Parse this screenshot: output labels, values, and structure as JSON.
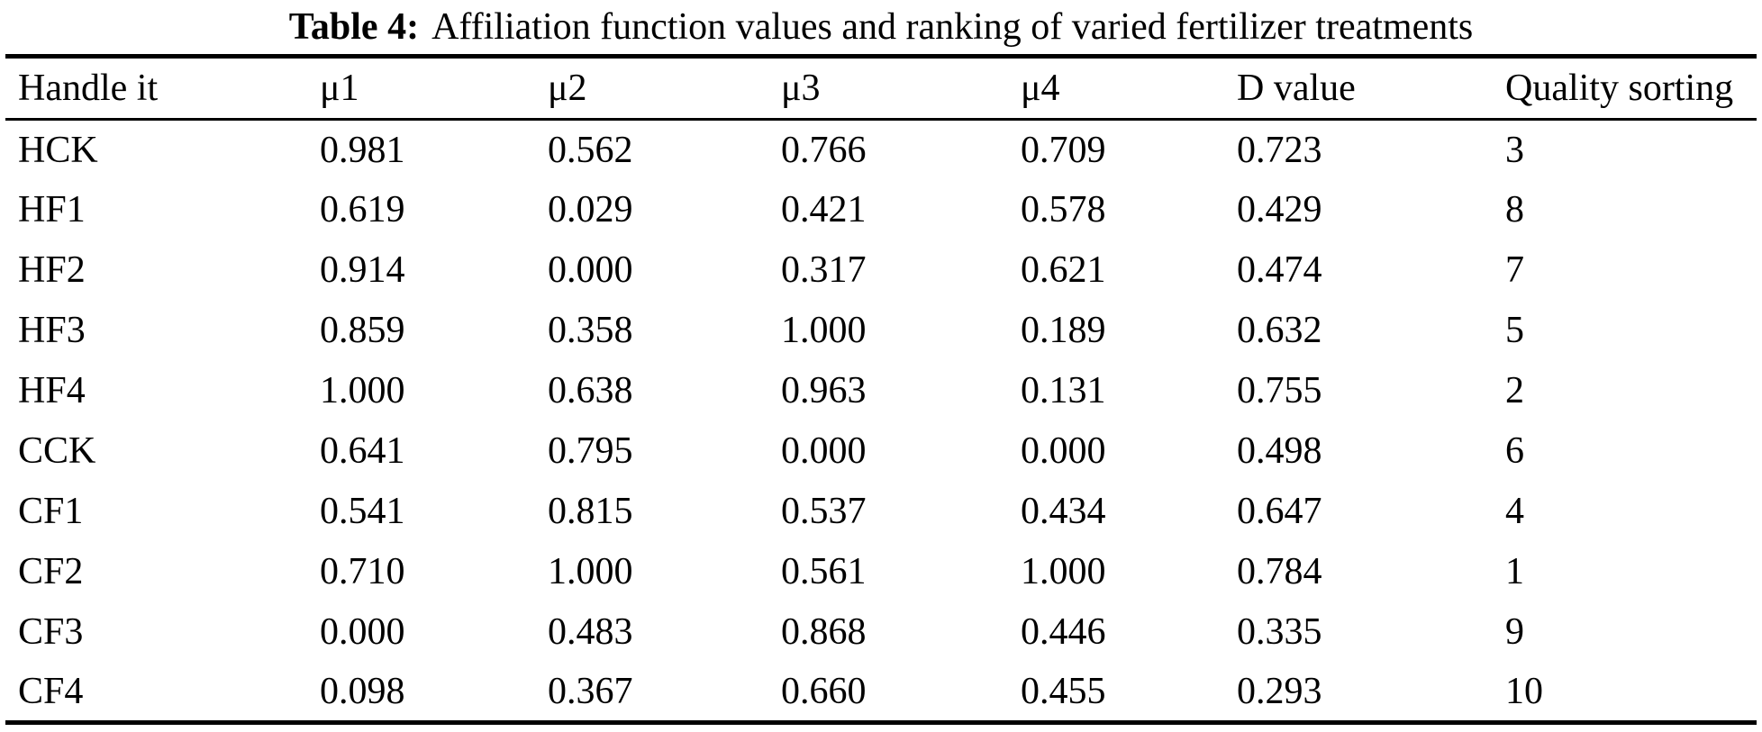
{
  "caption": {
    "label": "Table 4:",
    "text": "Affiliation function values and ranking of varied fertilizer treatments"
  },
  "table": {
    "columns": [
      "Handle it",
      "μ1",
      "μ2",
      "μ3",
      "μ4",
      "D value",
      "Quality sorting"
    ],
    "rows": [
      {
        "cells": [
          "HCK",
          "0.981",
          "0.562",
          "0.766",
          "0.709",
          "0.723",
          "3"
        ]
      },
      {
        "cells": [
          "HF1",
          "0.619",
          "0.029",
          "0.421",
          "0.578",
          "0.429",
          "8"
        ]
      },
      {
        "cells": [
          "HF2",
          "0.914",
          "0.000",
          "0.317",
          "0.621",
          "0.474",
          "7"
        ]
      },
      {
        "cells": [
          "HF3",
          "0.859",
          "0.358",
          "1.000",
          "0.189",
          "0.632",
          "5"
        ]
      },
      {
        "cells": [
          "HF4",
          "1.000",
          "0.638",
          "0.963",
          "0.131",
          "0.755",
          "2"
        ]
      },
      {
        "cells": [
          "CCK",
          "0.641",
          "0.795",
          "0.000",
          "0.000",
          "0.498",
          "6"
        ]
      },
      {
        "cells": [
          "CF1",
          "0.541",
          "0.815",
          "0.537",
          "0.434",
          "0.647",
          "4"
        ]
      },
      {
        "cells": [
          "CF2",
          "0.710",
          "1.000",
          "0.561",
          "1.000",
          "0.784",
          "1"
        ]
      },
      {
        "cells": [
          "CF3",
          "0.000",
          "0.483",
          "0.868",
          "0.446",
          "0.335",
          "9"
        ]
      },
      {
        "cells": [
          "CF4",
          "0.098",
          "0.367",
          "0.660",
          "0.455",
          "0.293",
          "10"
        ]
      }
    ]
  },
  "chart_data": {
    "type": "table",
    "title": "Table 4: Affiliation function values and ranking of varied fertilizer treatments",
    "columns": [
      "Handle it",
      "μ1",
      "μ2",
      "μ3",
      "μ4",
      "D value",
      "Quality sorting"
    ],
    "rows": [
      [
        "HCK",
        0.981,
        0.562,
        0.766,
        0.709,
        0.723,
        3
      ],
      [
        "HF1",
        0.619,
        0.029,
        0.421,
        0.578,
        0.429,
        8
      ],
      [
        "HF2",
        0.914,
        0.0,
        0.317,
        0.621,
        0.474,
        7
      ],
      [
        "HF3",
        0.859,
        0.358,
        1.0,
        0.189,
        0.632,
        5
      ],
      [
        "HF4",
        1.0,
        0.638,
        0.963,
        0.131,
        0.755,
        2
      ],
      [
        "CCK",
        0.641,
        0.795,
        0.0,
        0.0,
        0.498,
        6
      ],
      [
        "CF1",
        0.541,
        0.815,
        0.537,
        0.434,
        0.647,
        4
      ],
      [
        "CF2",
        0.71,
        1.0,
        0.561,
        1.0,
        0.784,
        1
      ],
      [
        "CF3",
        0.0,
        0.483,
        0.868,
        0.446,
        0.335,
        9
      ],
      [
        "CF4",
        0.098,
        0.367,
        0.66,
        0.455,
        0.293,
        10
      ]
    ]
  }
}
